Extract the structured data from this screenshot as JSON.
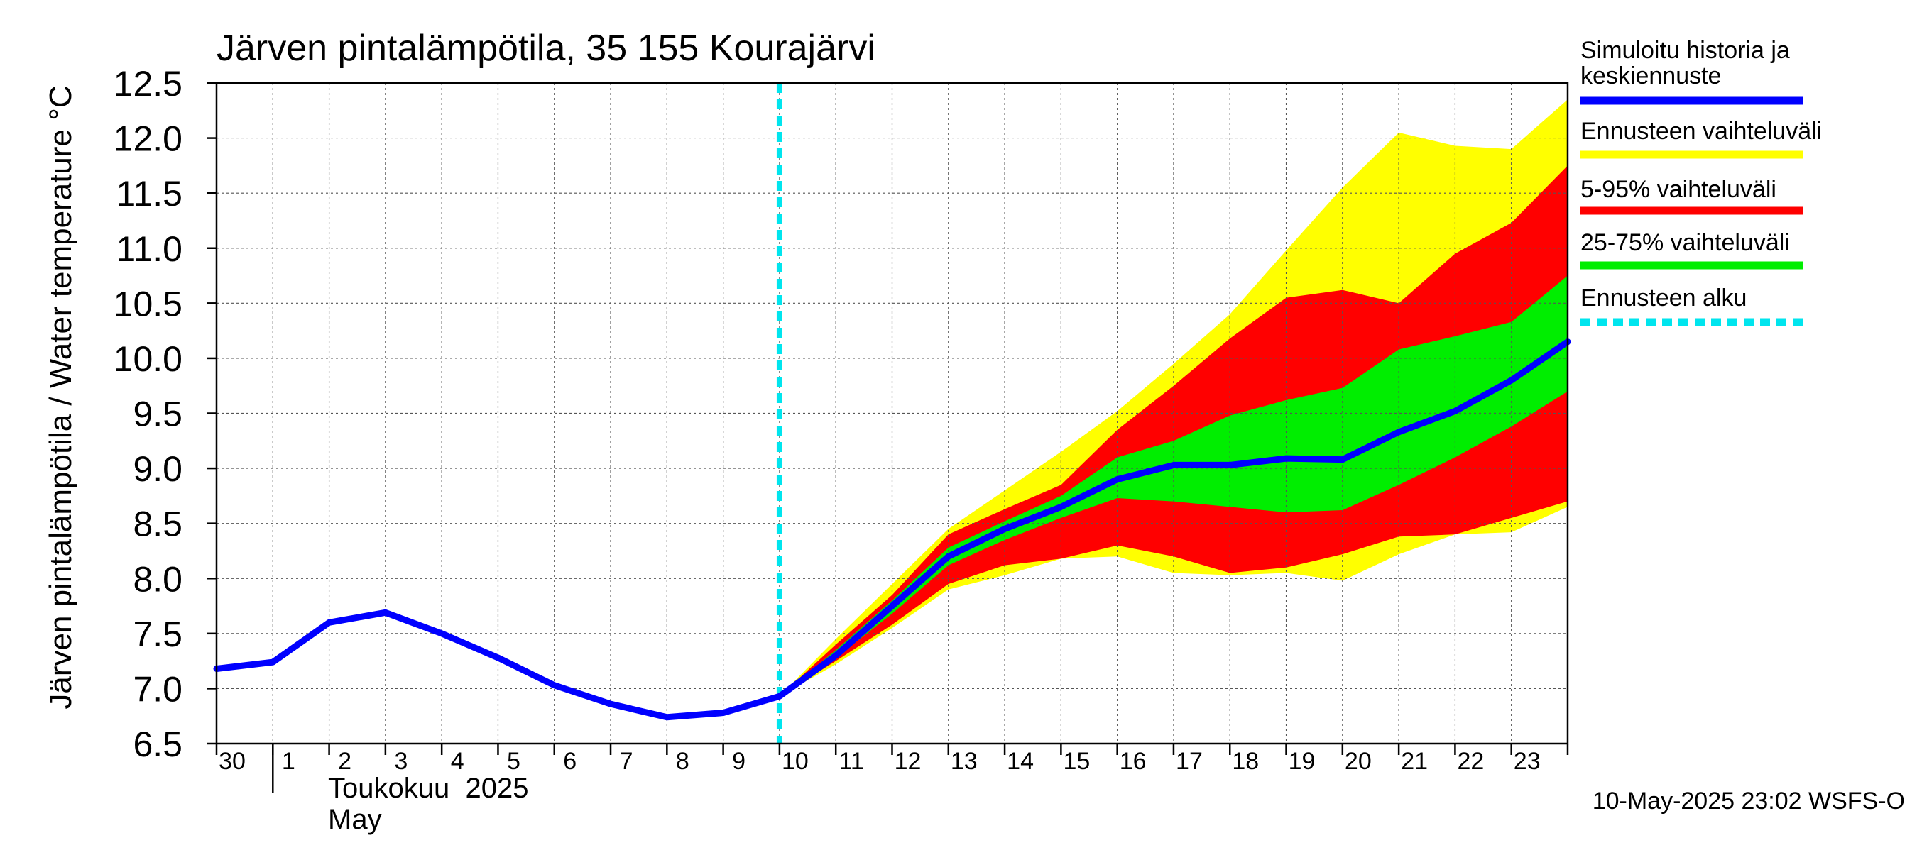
{
  "chart_data": {
    "type": "area",
    "title": "Järven pintalämpötila, 35 155 Kourajärvi",
    "ylabel": "Järven pintalämpötila / Water temperature °C",
    "ylim": [
      6.5,
      12.5
    ],
    "yticks": [
      "6.5",
      "7.0",
      "7.5",
      "8.0",
      "8.5",
      "9.0",
      "9.5",
      "10.0",
      "10.5",
      "11.0",
      "11.5",
      "12.0",
      "12.5"
    ],
    "xlim": [
      0,
      24
    ],
    "xtick_labels": [
      "30",
      "1",
      "2",
      "3",
      "4",
      "5",
      "6",
      "7",
      "8",
      "9",
      "10",
      "11",
      "12",
      "13",
      "14",
      "15",
      "16",
      "17",
      "18",
      "19",
      "20",
      "21",
      "22",
      "23"
    ],
    "month_label_fi": "Toukokuu  2025",
    "month_label_en": "May",
    "forecast_start_x": 10,
    "grid": true,
    "legend_position": "right",
    "footer": "10-May-2025 23:02 WSFS-O",
    "colors": {
      "history": "#0000ff",
      "range_full": "#ffff00",
      "range_5_95": "#ff0000",
      "range_25_75": "#00ee00",
      "forecast_start": "#00e5ee"
    },
    "legend": [
      {
        "key": "history",
        "label": "Simuloitu historia ja keskiennuste",
        "style": "solid"
      },
      {
        "key": "range_full",
        "label": "Ennusteen vaihteluväli",
        "style": "solid"
      },
      {
        "key": "range_5_95",
        "label": "5-95% vaihteluväli",
        "style": "solid"
      },
      {
        "key": "range_25_75",
        "label": "25-75% vaihteluväli",
        "style": "solid"
      },
      {
        "key": "forecast_start",
        "label": "Ennusteen alku",
        "style": "dashed"
      }
    ],
    "history_series": {
      "name": "Simuloitu historia ja keskiennuste",
      "x": [
        0,
        1,
        2,
        3,
        4,
        5,
        6,
        7,
        8,
        9,
        10,
        11,
        12,
        13,
        14,
        15,
        16,
        17,
        18,
        19,
        20,
        21,
        22,
        23,
        24
      ],
      "y": [
        7.18,
        7.24,
        7.6,
        7.69,
        7.5,
        7.28,
        7.03,
        6.86,
        6.74,
        6.78,
        6.93,
        7.3,
        7.75,
        8.2,
        8.45,
        8.65,
        8.9,
        9.03,
        9.03,
        9.09,
        9.08,
        9.33,
        9.52,
        9.8,
        10.15
      ]
    },
    "bands": {
      "x": [
        10,
        11,
        12,
        13,
        14,
        15,
        16,
        17,
        18,
        19,
        20,
        21,
        22,
        23,
        24
      ],
      "range_full": {
        "low": [
          6.93,
          7.22,
          7.55,
          7.9,
          8.03,
          8.18,
          8.2,
          8.05,
          8.03,
          8.05,
          7.98,
          8.22,
          8.4,
          8.42,
          8.65
        ],
        "high": [
          6.93,
          7.45,
          7.95,
          8.45,
          8.8,
          9.15,
          9.52,
          9.95,
          10.4,
          10.98,
          11.55,
          12.05,
          11.93,
          11.9,
          12.35
        ]
      },
      "range_5_95": {
        "low": [
          6.93,
          7.25,
          7.58,
          7.95,
          8.12,
          8.18,
          8.3,
          8.2,
          8.05,
          8.1,
          8.22,
          8.38,
          8.4,
          8.55,
          8.7
        ],
        "high": [
          6.93,
          7.4,
          7.85,
          8.4,
          8.63,
          8.85,
          9.35,
          9.75,
          10.18,
          10.55,
          10.62,
          10.5,
          10.95,
          11.23,
          11.75
        ]
      },
      "range_25_75": {
        "low": [
          6.93,
          7.28,
          7.68,
          8.12,
          8.35,
          8.55,
          8.73,
          8.7,
          8.65,
          8.6,
          8.62,
          8.85,
          9.1,
          9.38,
          9.7
        ],
        "high": [
          6.93,
          7.35,
          7.8,
          8.28,
          8.52,
          8.75,
          9.1,
          9.25,
          9.48,
          9.62,
          9.73,
          10.08,
          10.2,
          10.33,
          10.75
        ]
      }
    }
  }
}
